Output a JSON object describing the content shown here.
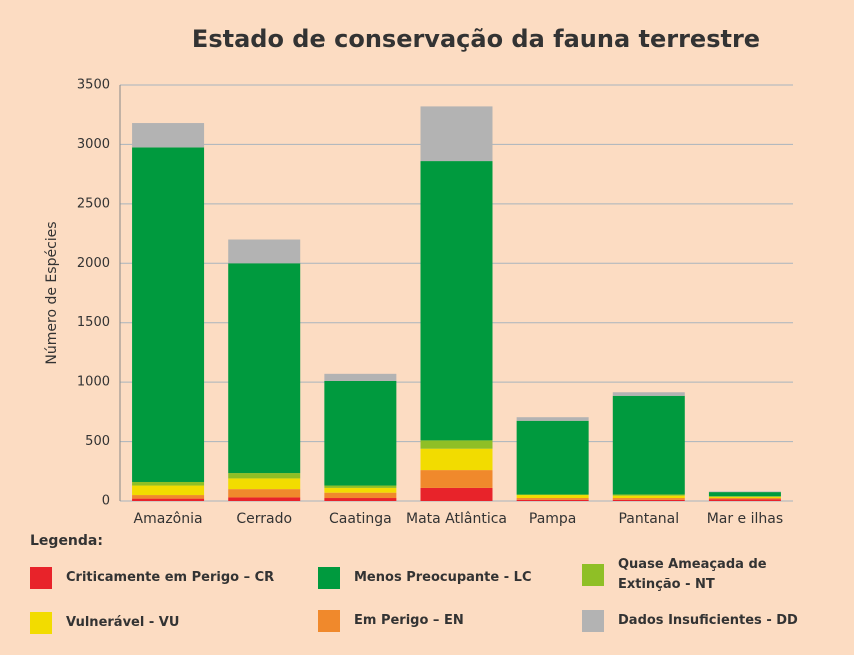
{
  "chart_data": {
    "type": "stacked_bar",
    "title": "Estado de conservação da fauna terrestre",
    "y_label": "Número de Espécies",
    "legend_title": "Legenda:",
    "categories": [
      "Amazônia",
      "Cerrado",
      "Caatinga",
      "Mata Atlântica",
      "Pampa",
      "Pantanal",
      "Mar e ilhas"
    ],
    "series": [
      {
        "name": "Criticamente em Perigo – CR",
        "color": "#e8232a",
        "values": [
          20,
          30,
          25,
          110,
          10,
          10,
          15
        ]
      },
      {
        "name": "Em Perigo – EN",
        "color": "#f0892c",
        "values": [
          30,
          70,
          45,
          150,
          15,
          15,
          10
        ]
      },
      {
        "name": "Vulnerável - VU",
        "color": "#f2dc00",
        "values": [
          80,
          90,
          40,
          180,
          25,
          20,
          10
        ]
      },
      {
        "name": "Quase Ameaçada de Extinção - NT",
        "color": "#8fbf26",
        "values": [
          30,
          45,
          20,
          70,
          5,
          10,
          5
        ]
      },
      {
        "name": "Menos Preocupante - LC",
        "color": "#009a3e",
        "values": [
          2815,
          1765,
          880,
          2350,
          620,
          830,
          35
        ]
      },
      {
        "name": "Dados Insuficientes - DD",
        "color": "#b3b3b3",
        "values": [
          205,
          200,
          60,
          460,
          30,
          30,
          5
        ]
      }
    ],
    "ylim": [
      0,
      3500
    ],
    "yticks": [
      0,
      500,
      1000,
      1500,
      2000,
      2500,
      3000,
      3500
    ],
    "grid": true
  }
}
